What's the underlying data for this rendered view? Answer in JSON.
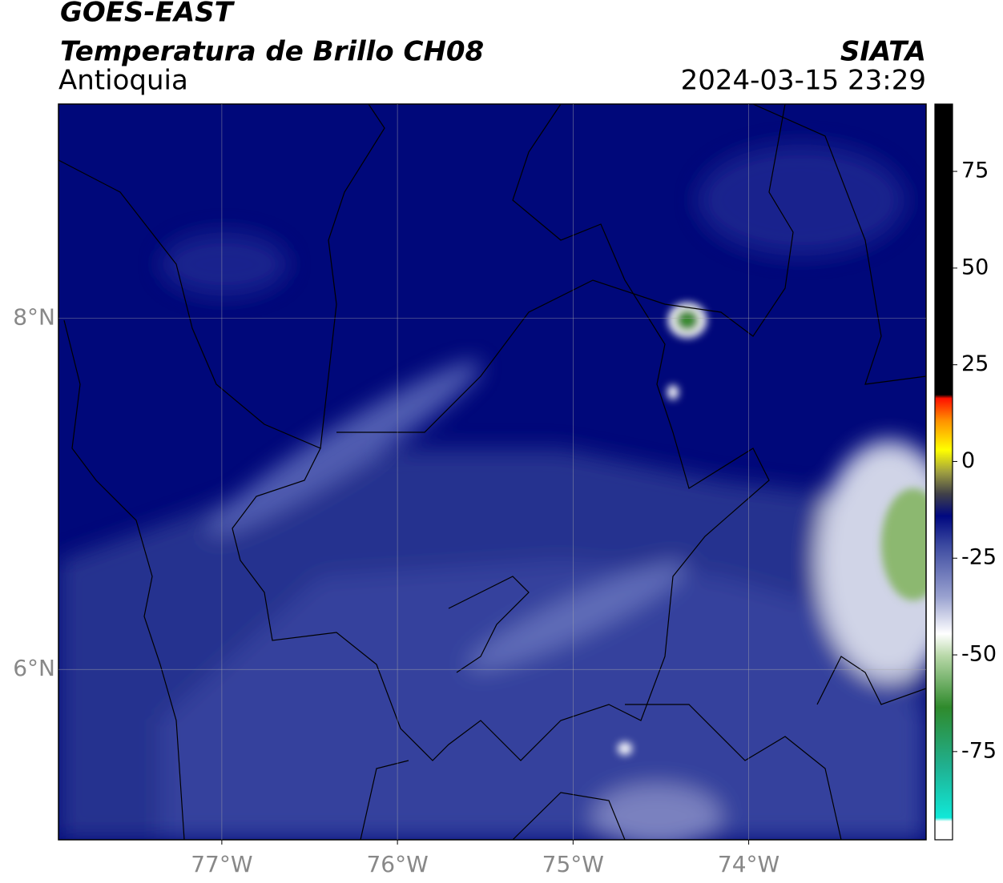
{
  "header": {
    "title": "GOES-EAST",
    "subtitle": "Temperatura de Brillo CH08",
    "region": "Antioquia",
    "source": "SIATA",
    "timestamp": "2024-03-15 23:29"
  },
  "map": {
    "xlim": [
      -77.93,
      -72.99
    ],
    "ylim": [
      5.03,
      9.22
    ],
    "xticks": [
      {
        "value": -77,
        "label": "77°W"
      },
      {
        "value": -76,
        "label": "76°W"
      },
      {
        "value": -75,
        "label": "75°W"
      },
      {
        "value": -74,
        "label": "74°W"
      }
    ],
    "yticks": [
      {
        "value": 6,
        "label": "6°N"
      },
      {
        "value": 8,
        "label": "8°N"
      }
    ],
    "grid": true
  },
  "colorbar": {
    "lim": [
      -97.8,
      92.4
    ],
    "ticks": [
      75,
      50,
      25,
      0,
      -25,
      -50,
      -75
    ]
  }
}
